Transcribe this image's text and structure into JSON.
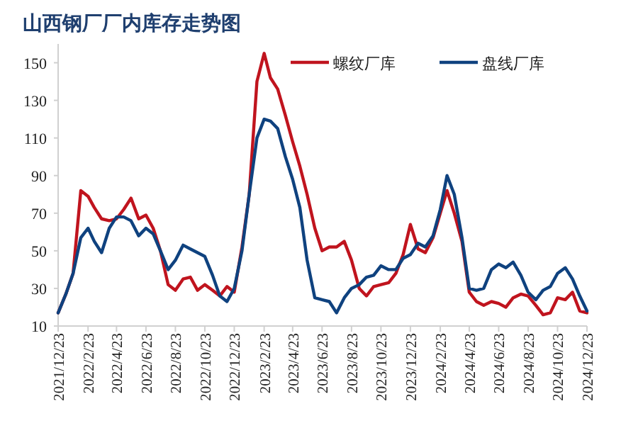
{
  "chart_data": {
    "type": "line",
    "title": "山西钢厂厂内库存走势图",
    "legend": "top",
    "grid": false,
    "marker": "none",
    "line_style": "solid",
    "x": [
      "2021-12-23",
      "2022-01-08",
      "2022-01-23",
      "2022-02-08",
      "2022-02-23",
      "2022-03-08",
      "2022-03-23",
      "2022-04-08",
      "2022-04-23",
      "2022-05-08",
      "2022-05-23",
      "2022-06-08",
      "2022-06-23",
      "2022-07-08",
      "2022-07-23",
      "2022-08-08",
      "2022-08-23",
      "2022-09-08",
      "2022-09-23",
      "2022-10-08",
      "2022-10-23",
      "2022-11-08",
      "2022-11-23",
      "2022-12-08",
      "2022-12-23",
      "2023-01-08",
      "2023-01-23",
      "2023-02-08",
      "2023-02-23",
      "2023-03-08",
      "2023-03-23",
      "2023-04-08",
      "2023-04-23",
      "2023-05-08",
      "2023-05-23",
      "2023-06-08",
      "2023-06-23",
      "2023-07-08",
      "2023-07-23",
      "2023-08-08",
      "2023-08-23",
      "2023-09-08",
      "2023-09-23",
      "2023-10-08",
      "2023-10-23",
      "2023-11-08",
      "2023-11-23",
      "2023-12-08",
      "2023-12-23",
      "2024-01-08",
      "2024-01-23",
      "2024-02-08",
      "2024-02-23",
      "2024-03-08",
      "2024-03-23",
      "2024-04-08",
      "2024-04-23",
      "2024-05-08",
      "2024-05-23",
      "2024-06-08",
      "2024-06-23",
      "2024-07-08",
      "2024-07-23",
      "2024-08-08",
      "2024-08-23",
      "2024-09-08",
      "2024-09-23",
      "2024-10-08",
      "2024-10-23",
      "2024-11-08",
      "2024-11-23",
      "2024-12-08",
      "2024-12-23"
    ],
    "series": [
      {
        "name": "螺纹厂库",
        "color": "#c0141e",
        "values": [
          17,
          27,
          38,
          82,
          79,
          73,
          67,
          66,
          67,
          72,
          78,
          67,
          69,
          62,
          50,
          32,
          29,
          35,
          36,
          29,
          32,
          29,
          26,
          31,
          28,
          52,
          80,
          140,
          155,
          142,
          136,
          122,
          108,
          95,
          80,
          62,
          50,
          52,
          52,
          55,
          45,
          30,
          26,
          31,
          32,
          33,
          38,
          48,
          64,
          51,
          49,
          57,
          70,
          82,
          70,
          55,
          28,
          23,
          21,
          23,
          22,
          20,
          25,
          27,
          26,
          21,
          16,
          17,
          25,
          24,
          28,
          18,
          17
        ]
      },
      {
        "name": "盘线厂库",
        "color": "#0f427f",
        "values": [
          17,
          27,
          38,
          57,
          62,
          55,
          49,
          62,
          68,
          68,
          66,
          58,
          62,
          59,
          50,
          40,
          45,
          53,
          51,
          49,
          47,
          37,
          26,
          23,
          30,
          50,
          80,
          110,
          120,
          119,
          115,
          100,
          88,
          73,
          45,
          25,
          24,
          23,
          17,
          25,
          30,
          32,
          36,
          37,
          42,
          40,
          40,
          46,
          48,
          54,
          52,
          58,
          72,
          90,
          80,
          57,
          30,
          29,
          30,
          40,
          43,
          41,
          44,
          37,
          28,
          24,
          29,
          31,
          38,
          41,
          35,
          26,
          18
        ]
      }
    ],
    "ylim": [
      10,
      160
    ],
    "yticks": [
      10,
      30,
      50,
      70,
      90,
      110,
      130,
      150
    ],
    "xlim": [
      "2021-12-23",
      "2024-12-23"
    ],
    "xticks": [
      {
        "value": "2021-12-23",
        "label": "2021/12/23"
      },
      {
        "value": "2022-02-23",
        "label": "2022/2/23"
      },
      {
        "value": "2022-04-23",
        "label": "2022/4/23"
      },
      {
        "value": "2022-06-23",
        "label": "2022/6/23"
      },
      {
        "value": "2022-08-23",
        "label": "2022/8/23"
      },
      {
        "value": "2022-10-23",
        "label": "2022/10/23"
      },
      {
        "value": "2022-12-23",
        "label": "2022/12/23"
      },
      {
        "value": "2023-02-23",
        "label": "2023/2/23"
      },
      {
        "value": "2023-04-23",
        "label": "2023/4/23"
      },
      {
        "value": "2023-06-23",
        "label": "2023/6/23"
      },
      {
        "value": "2023-08-23",
        "label": "2023/8/23"
      },
      {
        "value": "2023-10-23",
        "label": "2023/10/23"
      },
      {
        "value": "2023-12-23",
        "label": "2023/12/23"
      },
      {
        "value": "2024-02-23",
        "label": "2024/2/23"
      },
      {
        "value": "2024-04-23",
        "label": "2024/4/23"
      },
      {
        "value": "2024-06-23",
        "label": "2024/6/23"
      },
      {
        "value": "2024-08-23",
        "label": "2024/8/23"
      },
      {
        "value": "2024-10-23",
        "label": "2024/10/23"
      },
      {
        "value": "2024-12-23",
        "label": "2024/12/23"
      }
    ]
  }
}
